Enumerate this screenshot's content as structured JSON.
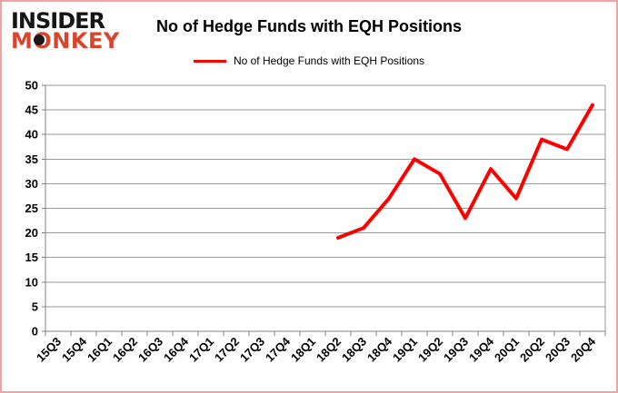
{
  "logo": {
    "line1": "INSIDER",
    "line2": "MONKEY",
    "brand_color": "#d9452c"
  },
  "header": {
    "title": "No of Hedge Funds with EQH Positions"
  },
  "legend": {
    "label": "No of Hedge Funds with EQH Positions",
    "color": "#ff0000"
  },
  "chart_data": {
    "type": "line",
    "title": "No of Hedge Funds with EQH Positions",
    "categories": [
      "15Q3",
      "15Q4",
      "16Q1",
      "16Q2",
      "16Q3",
      "16Q4",
      "17Q1",
      "17Q2",
      "17Q3",
      "17Q4",
      "18Q1",
      "18Q2",
      "18Q3",
      "18Q4",
      "19Q1",
      "19Q2",
      "19Q3",
      "19Q4",
      "20Q1",
      "20Q2",
      "20Q3",
      "20Q4"
    ],
    "series": [
      {
        "name": "No of Hedge Funds with EQH Positions",
        "color": "#ff0000",
        "values": [
          null,
          null,
          null,
          null,
          null,
          null,
          null,
          null,
          null,
          null,
          null,
          19,
          21,
          27,
          35,
          32,
          23,
          33,
          27,
          39,
          37,
          46
        ]
      }
    ],
    "ylim": [
      0,
      50
    ],
    "ytick_step": 5,
    "grid": "horizontal",
    "grid_color": "#9a9a9a",
    "axis_color": "#808080",
    "legend_position": "top"
  }
}
